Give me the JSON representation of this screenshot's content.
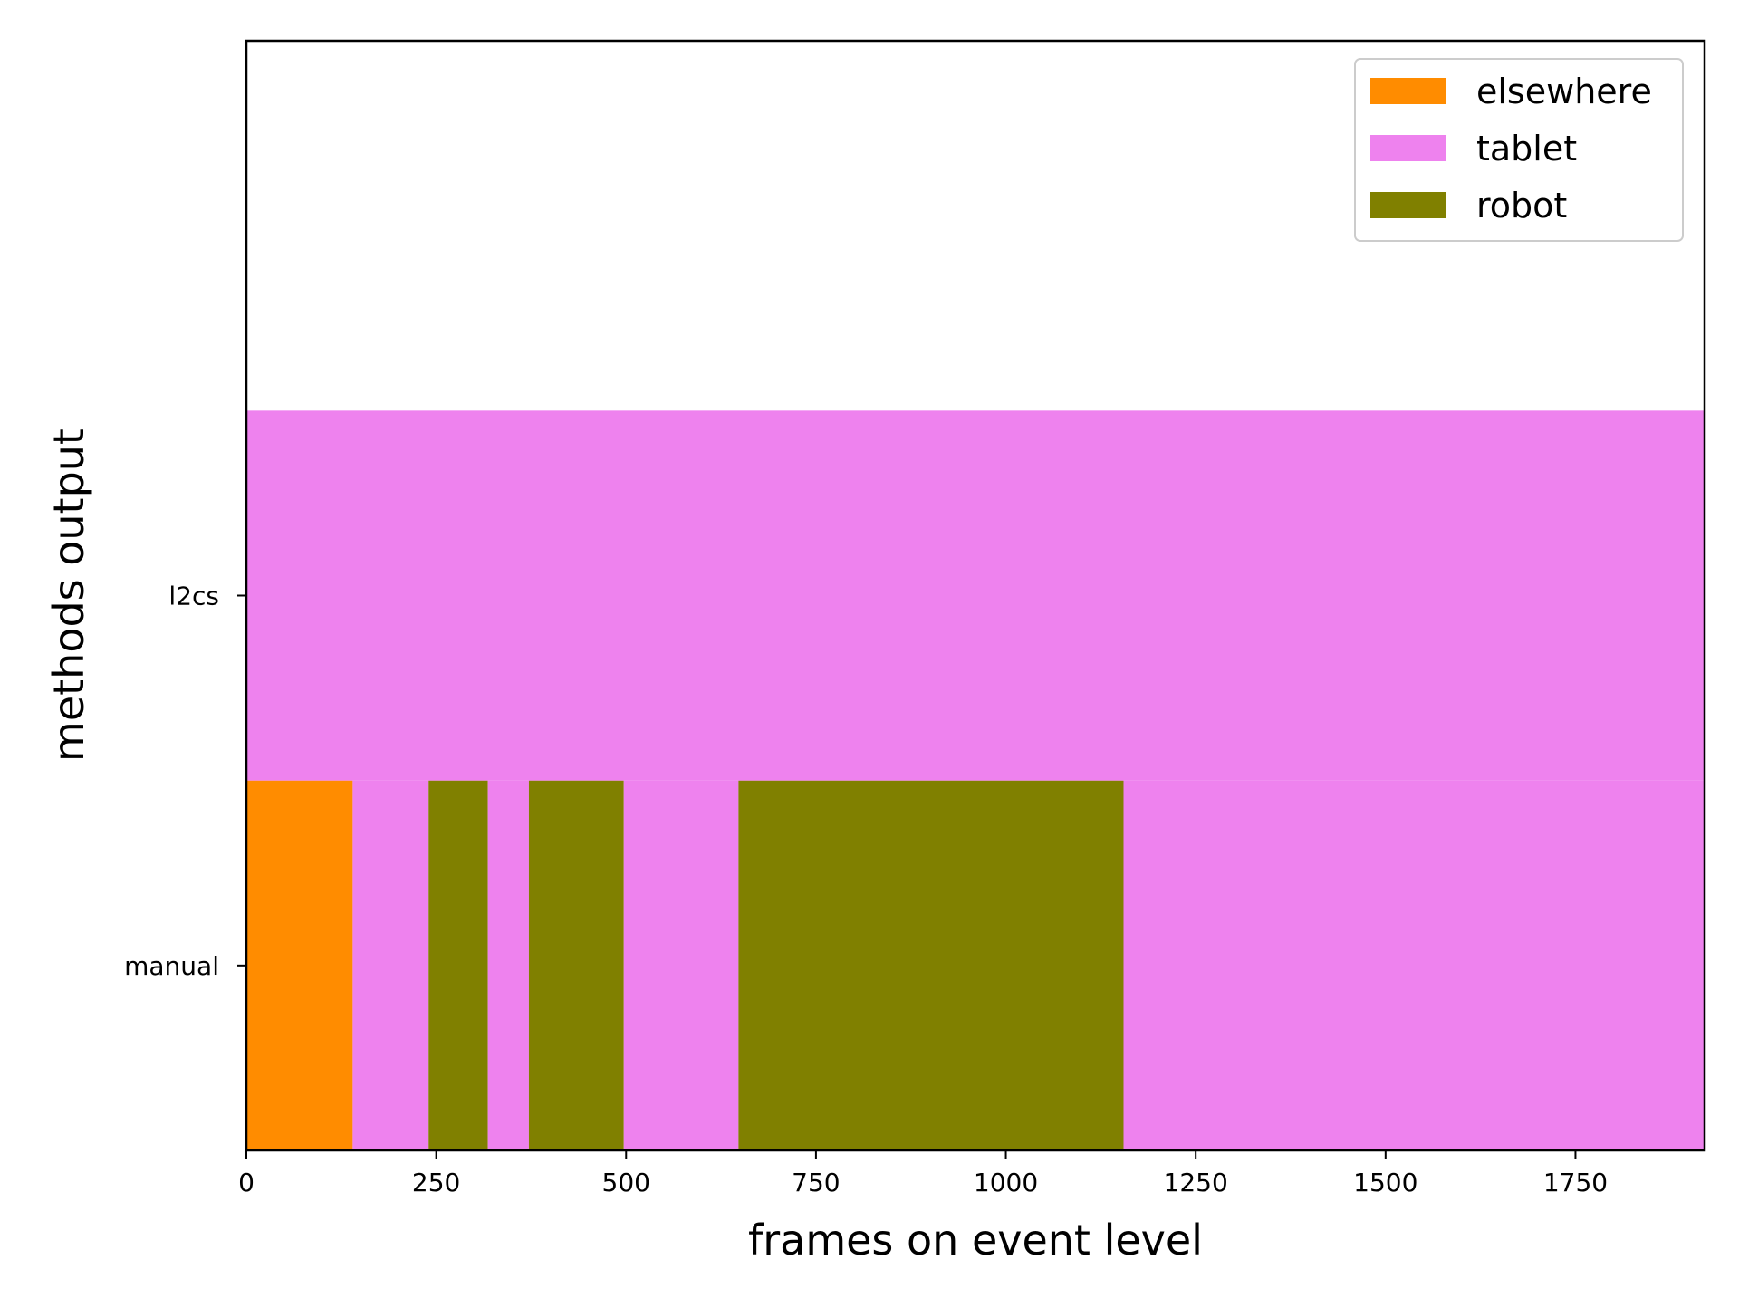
{
  "chart_data": {
    "type": "bar",
    "orientation": "horizontal-stacked-timeline",
    "xlabel": "frames on event level",
    "ylabel": "methods output",
    "xlim": [
      0,
      1920
    ],
    "x_ticks": [
      0,
      250,
      500,
      750,
      1000,
      1250,
      1500,
      1750
    ],
    "x_tick_labels": [
      "0",
      "250",
      "500",
      "750",
      "1000",
      "1250",
      "1500",
      "1750"
    ],
    "categories": [
      "manual",
      "l2cs"
    ],
    "grid": false,
    "legend": {
      "placement": "top-right",
      "entries": [
        {
          "label": "elsewhere",
          "color": "#ff8c00"
        },
        {
          "label": "tablet",
          "color": "#ee82ee"
        },
        {
          "label": "robot",
          "color": "#808000"
        }
      ]
    },
    "rows": [
      {
        "category": "manual",
        "segments": [
          {
            "label": "elsewhere",
            "start": 0,
            "end": 140
          },
          {
            "label": "tablet",
            "start": 140,
            "end": 240
          },
          {
            "label": "robot",
            "start": 240,
            "end": 318
          },
          {
            "label": "tablet",
            "start": 318,
            "end": 372
          },
          {
            "label": "robot",
            "start": 372,
            "end": 497
          },
          {
            "label": "tablet",
            "start": 497,
            "end": 648
          },
          {
            "label": "robot",
            "start": 648,
            "end": 1155
          },
          {
            "label": "tablet",
            "start": 1155,
            "end": 1920
          }
        ]
      },
      {
        "category": "l2cs",
        "segments": [
          {
            "label": "tablet",
            "start": 0,
            "end": 1920
          }
        ]
      }
    ]
  }
}
